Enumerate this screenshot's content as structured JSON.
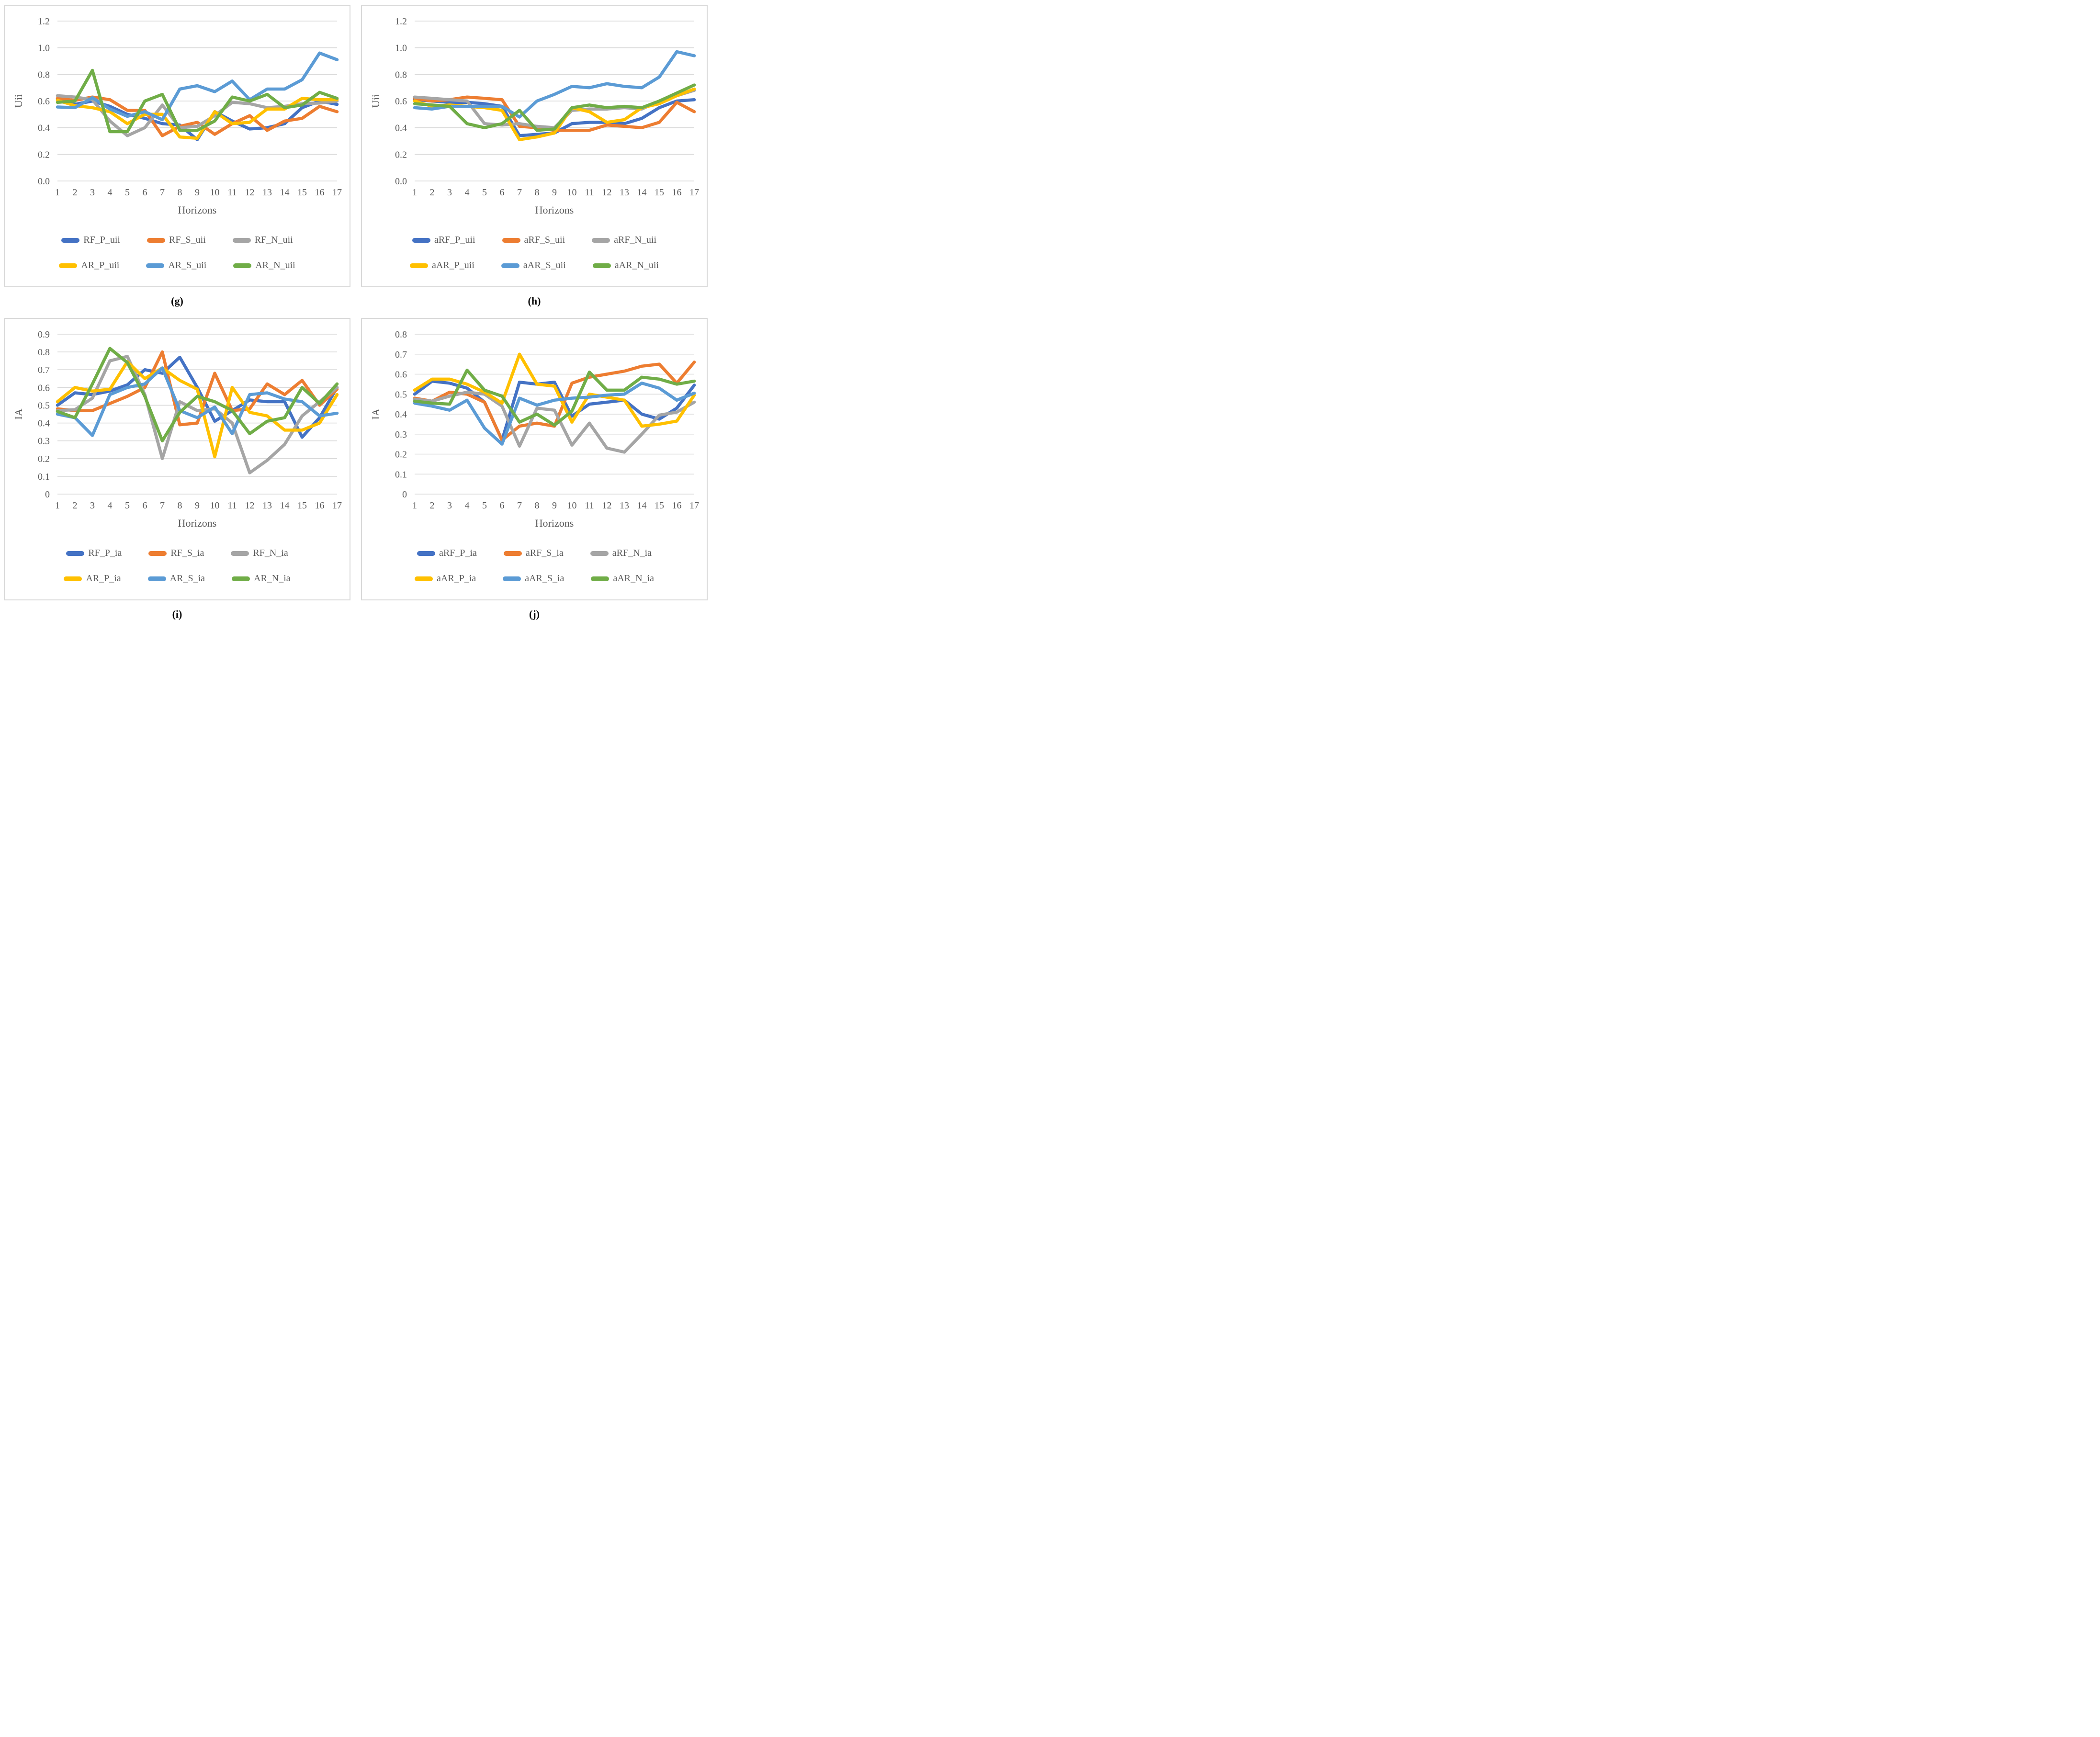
{
  "figure": {
    "background": "#ffffff",
    "grid_color": "#d9d9d9",
    "text_color": "#595959",
    "caption_color": "#000000"
  },
  "chart_data": [
    {
      "id": "g",
      "type": "line",
      "caption": "(g)",
      "xlabel": "Horizons",
      "ylabel": "Uii",
      "ylim": [
        0,
        1.2
      ],
      "yticks": [
        "0.0",
        "0.2",
        "0.4",
        "0.6",
        "0.8",
        "1.0",
        "1.2"
      ],
      "categories": [
        1,
        2,
        3,
        4,
        5,
        6,
        7,
        8,
        9,
        10,
        11,
        12,
        13,
        14,
        15,
        16,
        17
      ],
      "grid": true,
      "legend_position": "bottom",
      "series": [
        {
          "name": "RF_P_uii",
          "color": "#4472C4",
          "values": [
            0.615,
            0.575,
            0.6,
            0.56,
            0.5,
            0.47,
            0.43,
            0.42,
            0.31,
            0.52,
            0.45,
            0.39,
            0.4,
            0.43,
            0.55,
            0.6,
            0.575
          ]
        },
        {
          "name": "RF_S_uii",
          "color": "#ED7D31",
          "values": [
            0.62,
            0.605,
            0.63,
            0.61,
            0.53,
            0.53,
            0.34,
            0.41,
            0.44,
            0.35,
            0.43,
            0.49,
            0.38,
            0.45,
            0.47,
            0.56,
            0.52
          ]
        },
        {
          "name": "RF_N_uii",
          "color": "#A5A5A5",
          "values": [
            0.64,
            0.63,
            0.61,
            0.45,
            0.34,
            0.4,
            0.57,
            0.4,
            0.41,
            0.49,
            0.59,
            0.58,
            0.55,
            0.56,
            0.58,
            0.585,
            0.6
          ]
        },
        {
          "name": "AR_P_uii",
          "color": "#FFC000",
          "values": [
            0.605,
            0.565,
            0.55,
            0.52,
            0.43,
            0.5,
            0.5,
            0.33,
            0.32,
            0.52,
            0.43,
            0.44,
            0.54,
            0.54,
            0.62,
            0.61,
            0.61
          ]
        },
        {
          "name": "AR_S_uii",
          "color": "#5B9BD5",
          "values": [
            0.555,
            0.55,
            0.625,
            0.54,
            0.485,
            0.52,
            0.46,
            0.69,
            0.715,
            0.67,
            0.75,
            0.61,
            0.69,
            0.69,
            0.76,
            0.96,
            0.91
          ]
        },
        {
          "name": "AR_N_uii",
          "color": "#70AD47",
          "values": [
            0.59,
            0.6,
            0.83,
            0.37,
            0.37,
            0.6,
            0.65,
            0.38,
            0.38,
            0.45,
            0.63,
            0.6,
            0.65,
            0.55,
            0.57,
            0.665,
            0.62
          ]
        }
      ]
    },
    {
      "id": "h",
      "type": "line",
      "caption": "(h)",
      "xlabel": "Horizons",
      "ylabel": "Uii",
      "ylim": [
        0,
        1.2
      ],
      "yticks": [
        "0.0",
        "0.2",
        "0.4",
        "0.6",
        "0.8",
        "1.0",
        "1.2"
      ],
      "categories": [
        1,
        2,
        3,
        4,
        5,
        6,
        7,
        8,
        9,
        10,
        11,
        12,
        13,
        14,
        15,
        16,
        17
      ],
      "grid": true,
      "legend_position": "bottom",
      "series": [
        {
          "name": "aRF_P_uii",
          "color": "#4472C4",
          "values": [
            0.61,
            0.6,
            0.59,
            0.59,
            0.58,
            0.56,
            0.34,
            0.35,
            0.36,
            0.43,
            0.44,
            0.44,
            0.43,
            0.47,
            0.55,
            0.6,
            0.61
          ]
        },
        {
          "name": "aRF_S_uii",
          "color": "#ED7D31",
          "values": [
            0.62,
            0.6,
            0.61,
            0.63,
            0.62,
            0.61,
            0.41,
            0.4,
            0.38,
            0.38,
            0.38,
            0.42,
            0.41,
            0.4,
            0.44,
            0.59,
            0.52
          ]
        },
        {
          "name": "aRF_N_uii",
          "color": "#A5A5A5",
          "values": [
            0.63,
            0.62,
            0.61,
            0.6,
            0.43,
            0.42,
            0.43,
            0.41,
            0.4,
            0.53,
            0.54,
            0.54,
            0.55,
            0.54,
            0.6,
            0.64,
            0.68
          ]
        },
        {
          "name": "aAR_P_uii",
          "color": "#FFC000",
          "values": [
            0.6,
            0.56,
            0.57,
            0.56,
            0.55,
            0.53,
            0.31,
            0.33,
            0.36,
            0.55,
            0.52,
            0.44,
            0.46,
            0.55,
            0.58,
            0.64,
            0.69
          ]
        },
        {
          "name": "aAR_S_uii",
          "color": "#5B9BD5",
          "values": [
            0.55,
            0.54,
            0.56,
            0.56,
            0.56,
            0.56,
            0.48,
            0.6,
            0.65,
            0.71,
            0.7,
            0.73,
            0.71,
            0.7,
            0.78,
            0.97,
            0.94
          ]
        },
        {
          "name": "aAR_N_uii",
          "color": "#70AD47",
          "values": [
            0.58,
            0.57,
            0.56,
            0.43,
            0.4,
            0.43,
            0.53,
            0.38,
            0.39,
            0.55,
            0.57,
            0.55,
            0.56,
            0.55,
            0.6,
            0.66,
            0.72
          ]
        }
      ]
    },
    {
      "id": "i",
      "type": "line",
      "caption": "(i)",
      "xlabel": "Horizons",
      "ylabel": "IA",
      "ylim": [
        0,
        0.9
      ],
      "yticks": [
        "0",
        "0.1",
        "0.2",
        "0.3",
        "0.4",
        "0.5",
        "0.6",
        "0.7",
        "0.8",
        "0.9"
      ],
      "categories": [
        1,
        2,
        3,
        4,
        5,
        6,
        7,
        8,
        9,
        10,
        11,
        12,
        13,
        14,
        15,
        16,
        17
      ],
      "grid": true,
      "legend_position": "bottom",
      "series": [
        {
          "name": "RF_P_ia",
          "color": "#4472C4",
          "values": [
            0.5,
            0.57,
            0.56,
            0.58,
            0.615,
            0.7,
            0.68,
            0.77,
            0.6,
            0.41,
            0.47,
            0.53,
            0.52,
            0.52,
            0.32,
            0.43,
            0.6
          ]
        },
        {
          "name": "RF_S_ia",
          "color": "#ED7D31",
          "values": [
            0.48,
            0.47,
            0.47,
            0.51,
            0.55,
            0.6,
            0.8,
            0.39,
            0.4,
            0.68,
            0.47,
            0.48,
            0.62,
            0.56,
            0.64,
            0.5,
            0.59
          ]
        },
        {
          "name": "RF_N_ia",
          "color": "#A5A5A5",
          "values": [
            0.47,
            0.475,
            0.54,
            0.75,
            0.775,
            0.56,
            0.2,
            0.52,
            0.47,
            0.48,
            0.4,
            0.12,
            0.19,
            0.28,
            0.44,
            0.52,
            0.6
          ]
        },
        {
          "name": "AR_P_ia",
          "color": "#FFC000",
          "values": [
            0.52,
            0.6,
            0.58,
            0.59,
            0.745,
            0.65,
            0.71,
            0.64,
            0.59,
            0.21,
            0.6,
            0.46,
            0.44,
            0.36,
            0.36,
            0.4,
            0.56
          ]
        },
        {
          "name": "AR_S_ia",
          "color": "#5B9BD5",
          "values": [
            0.45,
            0.43,
            0.33,
            0.56,
            0.6,
            0.62,
            0.71,
            0.47,
            0.43,
            0.49,
            0.34,
            0.56,
            0.57,
            0.535,
            0.52,
            0.44,
            0.455
          ]
        },
        {
          "name": "AR_N_ia",
          "color": "#70AD47",
          "values": [
            0.465,
            0.43,
            0.62,
            0.82,
            0.74,
            0.55,
            0.3,
            0.46,
            0.55,
            0.52,
            0.47,
            0.34,
            0.41,
            0.43,
            0.6,
            0.51,
            0.62
          ]
        }
      ]
    },
    {
      "id": "j",
      "type": "line",
      "caption": "(j)",
      "xlabel": "Horizons",
      "ylabel": "IA",
      "ylim": [
        0,
        0.8
      ],
      "yticks": [
        "0",
        "0.1",
        "0.2",
        "0.3",
        "0.4",
        "0.5",
        "0.6",
        "0.7",
        "0.8"
      ],
      "categories": [
        1,
        2,
        3,
        4,
        5,
        6,
        7,
        8,
        9,
        10,
        11,
        12,
        13,
        14,
        15,
        16,
        17
      ],
      "grid": true,
      "legend_position": "bottom",
      "series": [
        {
          "name": "aRF_P_ia",
          "color": "#4472C4",
          "values": [
            0.5,
            0.565,
            0.555,
            0.53,
            0.46,
            0.27,
            0.56,
            0.55,
            0.56,
            0.39,
            0.45,
            0.46,
            0.47,
            0.4,
            0.375,
            0.43,
            0.545
          ]
        },
        {
          "name": "aRF_S_ia",
          "color": "#ED7D31",
          "values": [
            0.48,
            0.465,
            0.51,
            0.5,
            0.46,
            0.27,
            0.34,
            0.355,
            0.34,
            0.555,
            0.585,
            0.6,
            0.615,
            0.64,
            0.65,
            0.555,
            0.66
          ]
        },
        {
          "name": "aRF_N_ia",
          "color": "#A5A5A5",
          "values": [
            0.475,
            0.465,
            0.49,
            0.51,
            0.5,
            0.44,
            0.24,
            0.43,
            0.42,
            0.245,
            0.355,
            0.23,
            0.21,
            0.3,
            0.395,
            0.41,
            0.46
          ]
        },
        {
          "name": "aAR_P_ia",
          "color": "#FFC000",
          "values": [
            0.52,
            0.575,
            0.575,
            0.55,
            0.51,
            0.455,
            0.7,
            0.55,
            0.54,
            0.36,
            0.5,
            0.485,
            0.47,
            0.34,
            0.35,
            0.365,
            0.495
          ]
        },
        {
          "name": "aAR_S_ia",
          "color": "#5B9BD5",
          "values": [
            0.455,
            0.44,
            0.42,
            0.47,
            0.33,
            0.25,
            0.48,
            0.445,
            0.47,
            0.48,
            0.485,
            0.495,
            0.5,
            0.555,
            0.53,
            0.47,
            0.505
          ]
        },
        {
          "name": "aAR_N_ia",
          "color": "#70AD47",
          "values": [
            0.465,
            0.455,
            0.45,
            0.62,
            0.52,
            0.49,
            0.36,
            0.4,
            0.345,
            0.415,
            0.61,
            0.52,
            0.52,
            0.585,
            0.575,
            0.55,
            0.565
          ]
        }
      ]
    }
  ]
}
